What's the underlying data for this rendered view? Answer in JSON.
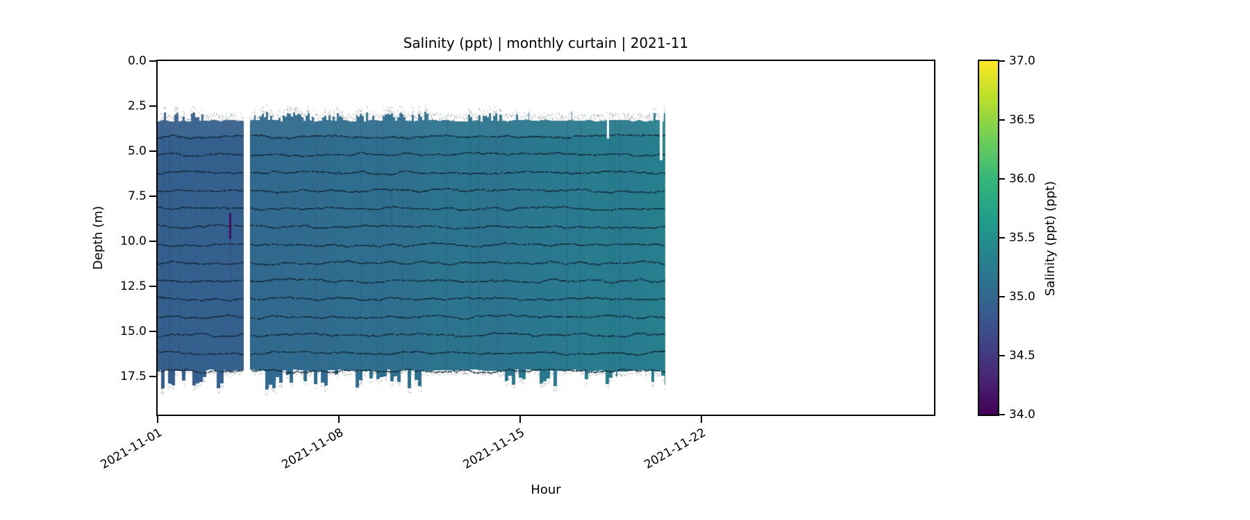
{
  "chart_data": {
    "type": "heatmap",
    "title": "Salinity (ppt) | monthly curtain | 2021-11",
    "xlabel": "Hour",
    "ylabel": "Depth (m)",
    "x_axis": {
      "start": "2021-11-01",
      "span_days": 30,
      "tick_rotation_deg": 30,
      "ticks": [
        {
          "day": 0,
          "label": "2021-11-01"
        },
        {
          "day": 7,
          "label": "2021-11-08"
        },
        {
          "day": 14,
          "label": "2021-11-15"
        },
        {
          "day": 21,
          "label": "2021-11-22"
        }
      ]
    },
    "y_axis": {
      "min": 0,
      "max": 19.6,
      "inverted": true,
      "ticks": [
        {
          "value": 0.0,
          "label": "0.0"
        },
        {
          "value": 2.5,
          "label": "2.5"
        },
        {
          "value": 5.0,
          "label": "5.0"
        },
        {
          "value": 7.5,
          "label": "7.5"
        },
        {
          "value": 10.0,
          "label": "10.0"
        },
        {
          "value": 12.5,
          "label": "12.5"
        },
        {
          "value": 15.0,
          "label": "15.0"
        },
        {
          "value": 17.5,
          "label": "17.5"
        }
      ]
    },
    "colorbar": {
      "label": "Salinity (ppt) (ppt)",
      "min": 34.0,
      "max": 37.0,
      "ticks": [
        {
          "value": 37.0,
          "label": "37.0"
        },
        {
          "value": 36.5,
          "label": "36.5"
        },
        {
          "value": 36.0,
          "label": "36.0"
        },
        {
          "value": 35.5,
          "label": "35.5"
        },
        {
          "value": 35.0,
          "label": "35.0"
        },
        {
          "value": 34.5,
          "label": "34.5"
        },
        {
          "value": 34.0,
          "label": "34.0"
        }
      ],
      "colormap": "viridis",
      "colormap_stops": [
        "#440154",
        "#482878",
        "#3e4989",
        "#31688e",
        "#26828e",
        "#1f9e89",
        "#35b779",
        "#6ece58",
        "#b5de2b",
        "#fde725"
      ]
    },
    "curtain": {
      "depth_top": 3.3,
      "depth_bottom": 17.15,
      "ragged_top_min": 2.8,
      "ragged_bottom_max": 18.3,
      "stripe_line_depths": [
        4.15,
        5.15,
        6.15,
        7.15,
        8.15,
        9.15,
        10.15,
        11.15,
        12.15,
        13.15,
        14.15,
        15.15,
        16.15,
        17.15
      ],
      "stripe_line_color": "#0d2534",
      "speckle_color": "#969ba0",
      "segments": [
        {
          "t0": 0.0,
          "t1": 3.32,
          "salinity_stops": [
            [
              0.0,
              34.88
            ],
            [
              3.32,
              34.9
            ]
          ]
        },
        {
          "t0": 3.58,
          "t1": 19.62,
          "salinity_stops": [
            [
              3.58,
              35.0
            ],
            [
              8.0,
              35.07
            ],
            [
              12.0,
              35.14
            ],
            [
              16.0,
              35.23
            ],
            [
              19.62,
              35.28
            ]
          ]
        }
      ],
      "gaps": [
        {
          "t0": 3.32,
          "t1": 3.58
        }
      ],
      "notches": [
        {
          "t0": 17.36,
          "t1": 17.45,
          "d0": 2.6,
          "d1": 4.3
        },
        {
          "t0": 19.4,
          "t1": 19.52,
          "d0": 2.6,
          "d1": 5.5
        }
      ],
      "anomalies": [
        {
          "day": 2.79,
          "d0": 8.4,
          "d1": 9.85,
          "salinity": 34.12,
          "alpha": 1.0,
          "width": 3
        },
        {
          "day": 2.83,
          "d0": 9.85,
          "d1": 12.3,
          "salinity": 34.5,
          "alpha": 0.35,
          "width": 2
        },
        {
          "day": 9.03,
          "d0": 7.2,
          "d1": 9.4,
          "salinity": 34.55,
          "alpha": 0.3,
          "width": 2
        }
      ]
    }
  }
}
